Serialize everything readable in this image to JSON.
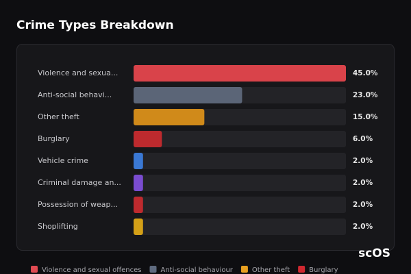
{
  "chart_data": {
    "type": "hbar",
    "title": "Crime Types Breakdown",
    "categories": [
      "Violence and sexua...",
      "Anti-social behavi...",
      "Other theft",
      "Burglary",
      "Vehicle crime",
      "Criminal damage an...",
      "Possession of weap...",
      "Shoplifting"
    ],
    "values": [
      45,
      23,
      15,
      6,
      2,
      2,
      2,
      2
    ],
    "value_labels": [
      "45.0%",
      "23.0%",
      "15.0%",
      "6.0%",
      "2.0%",
      "2.0%",
      "2.0%",
      "2.0%"
    ],
    "colors": [
      "#d9434a",
      "#5b6577",
      "#d08a1a",
      "#be2a2e",
      "#3a78d4",
      "#7a4cd0",
      "#be2a2e",
      "#d4a017"
    ],
    "xlim": [
      0,
      45
    ],
    "legend": [
      {
        "name": "Violence and sexual offences",
        "color": "#e04a52"
      },
      {
        "name": "Anti-social behaviour",
        "color": "#5f6b80"
      },
      {
        "name": "Other theft",
        "color": "#e8a020"
      },
      {
        "name": "Burglary",
        "color": "#d02830"
      }
    ],
    "watermark": "scOS"
  }
}
